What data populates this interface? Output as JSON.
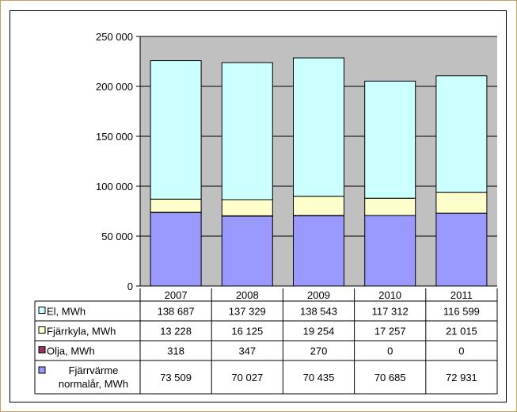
{
  "chart_data": {
    "type": "bar",
    "stacked": true,
    "categories": [
      "2007",
      "2008",
      "2009",
      "2010",
      "2011"
    ],
    "series": [
      {
        "name": "Fjärrvärme normalår, MWh",
        "values": [
          73509,
          70027,
          70435,
          70685,
          72931
        ],
        "labels": [
          "73 509",
          "70 027",
          "70 435",
          "70 685",
          "72 931"
        ],
        "color": "#9999ff"
      },
      {
        "name": "Olja, MWh",
        "values": [
          318,
          347,
          270,
          0,
          0
        ],
        "labels": [
          "318",
          "347",
          "270",
          "0",
          "0"
        ],
        "color": "#993366"
      },
      {
        "name": "Fjärrkyla, MWh",
        "values": [
          13228,
          16125,
          19254,
          17257,
          21015
        ],
        "labels": [
          "13 228",
          "16 125",
          "19 254",
          "17 257",
          "21 015"
        ],
        "color": "#ffffcc"
      },
      {
        "name": "El, MWh",
        "values": [
          138687,
          137329,
          138543,
          117312,
          116599
        ],
        "labels": [
          "138 687",
          "137 329",
          "138 543",
          "117 312",
          "116 599"
        ],
        "color": "#ccffff"
      }
    ],
    "ylim": [
      0,
      250000
    ],
    "yticks": [
      0,
      50000,
      100000,
      150000,
      200000,
      250000
    ],
    "ytick_labels": [
      "0",
      "50 000",
      "100 000",
      "150 000",
      "200 000",
      "250 000"
    ],
    "grid": true,
    "plot_background": "#c0c0c0",
    "legend_placement": "data-table-left"
  }
}
